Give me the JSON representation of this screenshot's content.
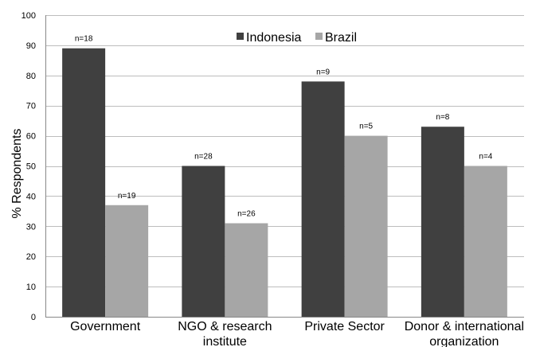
{
  "chart_data": {
    "type": "bar",
    "categories": [
      [
        "Government"
      ],
      [
        "NGO & research",
        "institute"
      ],
      [
        "Private Sector"
      ],
      [
        "Donor & international",
        "organization"
      ]
    ],
    "series": [
      {
        "name": "Indonesia",
        "color": "#404040",
        "values": [
          89,
          50,
          78,
          63
        ],
        "labels": [
          "n=18",
          "n=28",
          "n=9",
          "n=8"
        ]
      },
      {
        "name": "Brazil",
        "color": "#a6a6a6",
        "values": [
          37,
          31,
          60,
          50
        ],
        "labels": [
          "n=19",
          "n=26",
          "n=5",
          "n=4"
        ]
      }
    ],
    "ylabel": "% Respondents",
    "ylim": [
      0,
      100
    ],
    "yticks": [
      0,
      10,
      20,
      30,
      40,
      50,
      60,
      70,
      80,
      90,
      100
    ],
    "grid": true,
    "legend": "top-center"
  }
}
